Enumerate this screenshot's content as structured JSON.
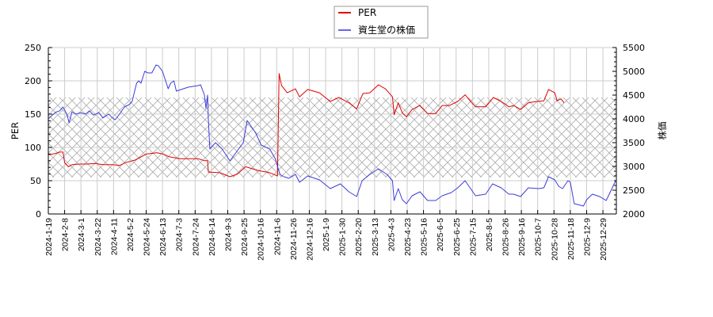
{
  "chart_data": {
    "type": "line",
    "title": "",
    "xlabel": "",
    "ylabel": "PER",
    "ylabel_right": "株価",
    "ylim": [
      0,
      250
    ],
    "ylim_right": [
      2000,
      5500
    ],
    "yticks": [
      0,
      50,
      100,
      150,
      200,
      250
    ],
    "yticks_right": [
      2000,
      2500,
      3000,
      3500,
      4000,
      4500,
      5000,
      5500
    ],
    "xticks": [
      "2024-1-19",
      "2024-2-8",
      "2024-3-1",
      "2024-3-22",
      "2024-4-11",
      "2024-5-2",
      "2024-5-24",
      "2024-6-13",
      "2024-7-3",
      "2024-7-24",
      "2024-8-14",
      "2024-9-3",
      "2024-9-25",
      "2024-10-16",
      "2024-11-6",
      "2024-11-26",
      "2024-12-16",
      "2025-1-9",
      "2025-1-30",
      "2025-2-20",
      "2025-3-13",
      "2025-4-3",
      "2025-4-23",
      "2025-5-16",
      "2025-6-5",
      "2025-6-25",
      "2025-7-15",
      "2025-8-5",
      "2025-8-26",
      "2025-9-16",
      "2025-10-7",
      "2025-10-28",
      "2025-11-18",
      "2025-12-9",
      "2025-12-29"
    ],
    "grid": true,
    "legend_position": "top-center",
    "shaded_band": {
      "axis": "left",
      "from": 55,
      "to": 175,
      "style": "cross-hatch",
      "color": "#b0b0b0"
    },
    "series": [
      {
        "name": "PER",
        "axis": "left",
        "color": "#e00000",
        "points": [
          [
            "2024-01-19",
            89
          ],
          [
            "2024-01-24",
            90
          ],
          [
            "2024-01-28",
            91
          ],
          [
            "2024-02-02",
            93
          ],
          [
            "2024-02-06",
            93
          ],
          [
            "2024-02-08",
            77
          ],
          [
            "2024-02-13",
            71
          ],
          [
            "2024-02-18",
            74
          ],
          [
            "2024-02-28",
            75
          ],
          [
            "2024-03-09",
            75
          ],
          [
            "2024-03-19",
            76
          ],
          [
            "2024-03-29",
            74
          ],
          [
            "2024-04-09",
            74
          ],
          [
            "2024-04-19",
            73
          ],
          [
            "2024-04-26",
            77
          ],
          [
            "2024-05-09",
            81
          ],
          [
            "2024-05-24",
            90
          ],
          [
            "2024-06-06",
            92
          ],
          [
            "2024-06-14",
            90
          ],
          [
            "2024-06-21",
            86
          ],
          [
            "2024-07-04",
            83
          ],
          [
            "2024-07-17",
            83
          ],
          [
            "2024-07-28",
            83
          ],
          [
            "2024-08-05",
            80
          ],
          [
            "2024-08-09",
            80
          ],
          [
            "2024-08-10",
            63
          ],
          [
            "2024-08-24",
            62
          ],
          [
            "2024-09-06",
            56
          ],
          [
            "2024-09-16",
            60
          ],
          [
            "2024-09-27",
            71
          ],
          [
            "2024-10-14",
            65
          ],
          [
            "2024-10-28",
            62
          ],
          [
            "2024-11-07",
            57
          ],
          [
            "2024-11-09",
            211
          ],
          [
            "2024-11-12",
            193
          ],
          [
            "2024-11-19",
            182
          ],
          [
            "2024-11-29",
            188
          ],
          [
            "2024-12-04",
            176
          ],
          [
            "2024-12-14",
            187
          ],
          [
            "2024-12-31",
            182
          ],
          [
            "2025-01-15",
            169
          ],
          [
            "2025-01-26",
            175
          ],
          [
            "2025-02-08",
            167
          ],
          [
            "2025-02-18",
            158
          ],
          [
            "2025-02-26",
            181
          ],
          [
            "2025-03-07",
            182
          ],
          [
            "2025-03-18",
            194
          ],
          [
            "2025-03-27",
            188
          ],
          [
            "2025-04-05",
            176
          ],
          [
            "2025-04-07",
            149
          ],
          [
            "2025-04-12",
            167
          ],
          [
            "2025-04-17",
            152
          ],
          [
            "2025-04-22",
            146
          ],
          [
            "2025-04-30",
            157
          ],
          [
            "2025-05-11",
            163
          ],
          [
            "2025-05-21",
            151
          ],
          [
            "2025-05-31",
            151
          ],
          [
            "2025-06-08",
            163
          ],
          [
            "2025-06-17",
            163
          ],
          [
            "2025-06-27",
            169
          ],
          [
            "2025-07-06",
            179
          ],
          [
            "2025-07-12",
            170
          ],
          [
            "2025-07-19",
            161
          ],
          [
            "2025-08-01",
            161
          ],
          [
            "2025-08-11",
            175
          ],
          [
            "2025-08-21",
            169
          ],
          [
            "2025-08-31",
            161
          ],
          [
            "2025-09-06",
            163
          ],
          [
            "2025-09-15",
            157
          ],
          [
            "2025-09-25",
            167
          ],
          [
            "2025-10-05",
            169
          ],
          [
            "2025-10-15",
            170
          ],
          [
            "2025-10-21",
            187
          ],
          [
            "2025-10-29",
            182
          ],
          [
            "2025-11-01",
            170
          ],
          [
            "2025-11-06",
            173
          ],
          [
            "2025-11-10",
            167
          ]
        ]
      },
      {
        "name": "資生堂の株価",
        "axis": "right",
        "color": "#3c3cdc",
        "legend_color": "#6666ee",
        "points": [
          [
            "2024-01-19",
            4000
          ],
          [
            "2024-01-24",
            4080
          ],
          [
            "2024-01-28",
            4140
          ],
          [
            "2024-02-02",
            4170
          ],
          [
            "2024-02-06",
            4250
          ],
          [
            "2024-02-11",
            4100
          ],
          [
            "2024-02-14",
            3917
          ],
          [
            "2024-02-18",
            4150
          ],
          [
            "2024-02-23",
            4100
          ],
          [
            "2024-03-01",
            4130
          ],
          [
            "2024-03-07",
            4100
          ],
          [
            "2024-03-12",
            4170
          ],
          [
            "2024-03-17",
            4080
          ],
          [
            "2024-03-24",
            4130
          ],
          [
            "2024-03-29",
            4020
          ],
          [
            "2024-04-05",
            4100
          ],
          [
            "2024-04-09",
            4030
          ],
          [
            "2024-04-13",
            3980
          ],
          [
            "2024-04-18",
            4083
          ],
          [
            "2024-04-25",
            4250
          ],
          [
            "2024-05-01",
            4300
          ],
          [
            "2024-05-05",
            4367
          ],
          [
            "2024-05-11",
            4750
          ],
          [
            "2024-05-14",
            4800
          ],
          [
            "2024-05-17",
            4750
          ],
          [
            "2024-05-22",
            5000
          ],
          [
            "2024-05-26",
            4967
          ],
          [
            "2024-05-31",
            4967
          ],
          [
            "2024-06-05",
            5133
          ],
          [
            "2024-06-08",
            5117
          ],
          [
            "2024-06-13",
            5000
          ],
          [
            "2024-06-20",
            4633
          ],
          [
            "2024-06-23",
            4750
          ],
          [
            "2024-06-27",
            4800
          ],
          [
            "2024-06-30",
            4583
          ],
          [
            "2024-07-15",
            4667
          ],
          [
            "2024-07-28",
            4700
          ],
          [
            "2024-07-31",
            4717
          ],
          [
            "2024-08-05",
            4500
          ],
          [
            "2024-08-07",
            4217
          ],
          [
            "2024-08-09",
            4500
          ],
          [
            "2024-08-10",
            4000
          ],
          [
            "2024-08-12",
            3367
          ],
          [
            "2024-08-19",
            3500
          ],
          [
            "2024-08-27",
            3367
          ],
          [
            "2024-09-06",
            3117
          ],
          [
            "2024-09-16",
            3333
          ],
          [
            "2024-09-24",
            3500
          ],
          [
            "2024-09-29",
            3967
          ],
          [
            "2024-10-10",
            3700
          ],
          [
            "2024-10-17",
            3450
          ],
          [
            "2024-10-28",
            3367
          ],
          [
            "2024-11-04",
            3167
          ],
          [
            "2024-11-10",
            2833
          ],
          [
            "2024-11-15",
            2783
          ],
          [
            "2024-11-21",
            2750
          ],
          [
            "2024-11-29",
            2833
          ],
          [
            "2024-12-04",
            2667
          ],
          [
            "2024-12-14",
            2800
          ],
          [
            "2024-12-31",
            2717
          ],
          [
            "2025-01-15",
            2533
          ],
          [
            "2025-01-28",
            2633
          ],
          [
            "2025-02-08",
            2467
          ],
          [
            "2025-02-18",
            2367
          ],
          [
            "2025-02-25",
            2700
          ],
          [
            "2025-03-07",
            2833
          ],
          [
            "2025-03-18",
            2950
          ],
          [
            "2025-03-29",
            2833
          ],
          [
            "2025-04-05",
            2700
          ],
          [
            "2025-04-07",
            2283
          ],
          [
            "2025-04-12",
            2533
          ],
          [
            "2025-04-17",
            2300
          ],
          [
            "2025-04-22",
            2217
          ],
          [
            "2025-04-30",
            2383
          ],
          [
            "2025-05-11",
            2467
          ],
          [
            "2025-05-21",
            2283
          ],
          [
            "2025-05-31",
            2283
          ],
          [
            "2025-06-08",
            2383
          ],
          [
            "2025-06-19",
            2450
          ],
          [
            "2025-06-27",
            2550
          ],
          [
            "2025-07-06",
            2700
          ],
          [
            "2025-07-12",
            2550
          ],
          [
            "2025-07-19",
            2383
          ],
          [
            "2025-08-01",
            2417
          ],
          [
            "2025-08-10",
            2633
          ],
          [
            "2025-08-21",
            2550
          ],
          [
            "2025-08-31",
            2417
          ],
          [
            "2025-09-06",
            2417
          ],
          [
            "2025-09-15",
            2367
          ],
          [
            "2025-09-25",
            2550
          ],
          [
            "2025-10-08",
            2533
          ],
          [
            "2025-10-15",
            2550
          ],
          [
            "2025-10-21",
            2783
          ],
          [
            "2025-10-29",
            2717
          ],
          [
            "2025-11-03",
            2583
          ],
          [
            "2025-11-08",
            2533
          ],
          [
            "2025-11-15",
            2700
          ],
          [
            "2025-11-18",
            2667
          ],
          [
            "2025-11-23",
            2217
          ],
          [
            "2025-12-05",
            2167
          ],
          [
            "2025-12-09",
            2300
          ],
          [
            "2025-12-16",
            2417
          ],
          [
            "2025-12-25",
            2367
          ],
          [
            "2026-01-02",
            2283
          ],
          [
            "2026-01-05",
            2383
          ],
          [
            "2026-01-14",
            2700
          ]
        ]
      }
    ]
  }
}
